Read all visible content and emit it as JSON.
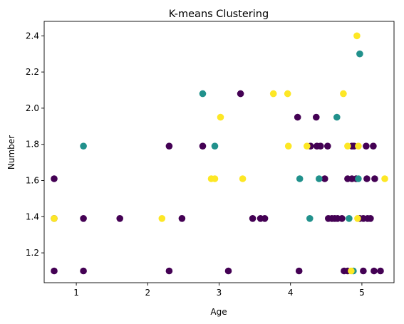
{
  "chart_data": {
    "type": "scatter",
    "title": "K-means Clustering",
    "xlabel": "Age",
    "ylabel": "Number",
    "xlim": [
      0.55,
      5.45
    ],
    "ylim": [
      1.035,
      2.48
    ],
    "xticks": [
      1,
      2,
      3,
      4,
      5
    ],
    "yticks": [
      1.2,
      1.4,
      1.6,
      1.8,
      2.0,
      2.2,
      2.4
    ],
    "xtick_labels": [
      "1",
      "2",
      "3",
      "4",
      "5"
    ],
    "ytick_labels": [
      "1.2",
      "1.4",
      "1.6",
      "1.8",
      "2.0",
      "2.2",
      "2.4"
    ],
    "grid": false,
    "cluster_colors": [
      "#440154",
      "#21918c",
      "#fde725"
    ],
    "series": [
      {
        "color": "#440154",
        "points": [
          [
            0.69,
            1.1
          ],
          [
            1.1,
            1.1
          ],
          [
            2.3,
            1.1
          ],
          [
            3.13,
            1.1
          ],
          [
            4.12,
            1.1
          ],
          [
            4.75,
            1.1
          ],
          [
            4.8,
            1.1
          ],
          [
            5.02,
            1.1
          ],
          [
            5.17,
            1.1
          ],
          [
            5.26,
            1.1
          ],
          [
            0.69,
            1.39
          ],
          [
            1.1,
            1.39
          ],
          [
            1.61,
            1.39
          ],
          [
            2.48,
            1.39
          ],
          [
            3.47,
            1.39
          ],
          [
            3.58,
            1.39
          ],
          [
            3.64,
            1.39
          ],
          [
            4.53,
            1.39
          ],
          [
            4.58,
            1.39
          ],
          [
            4.62,
            1.39
          ],
          [
            4.66,
            1.39
          ],
          [
            4.72,
            1.39
          ],
          [
            4.97,
            1.39
          ],
          [
            5.02,
            1.39
          ],
          [
            5.08,
            1.39
          ],
          [
            5.12,
            1.39
          ],
          [
            0.69,
            1.61
          ],
          [
            4.48,
            1.61
          ],
          [
            4.8,
            1.61
          ],
          [
            4.86,
            1.61
          ],
          [
            4.92,
            1.61
          ],
          [
            5.07,
            1.61
          ],
          [
            5.18,
            1.61
          ],
          [
            2.3,
            1.79
          ],
          [
            2.77,
            1.79
          ],
          [
            4.28,
            1.79
          ],
          [
            4.37,
            1.79
          ],
          [
            4.42,
            1.79
          ],
          [
            4.52,
            1.79
          ],
          [
            4.86,
            1.79
          ],
          [
            4.89,
            1.79
          ],
          [
            5.06,
            1.79
          ],
          [
            5.16,
            1.79
          ],
          [
            4.1,
            1.95
          ],
          [
            4.36,
            1.95
          ],
          [
            3.3,
            2.08
          ]
        ]
      },
      {
        "color": "#21918c",
        "points": [
          [
            1.1,
            1.79
          ],
          [
            2.77,
            2.08
          ],
          [
            2.94,
            1.79
          ],
          [
            4.13,
            1.61
          ],
          [
            4.4,
            1.61
          ],
          [
            4.27,
            1.39
          ],
          [
            4.82,
            1.39
          ],
          [
            4.65,
            1.95
          ],
          [
            4.97,
            2.3
          ],
          [
            4.88,
            1.1
          ],
          [
            4.95,
            1.61
          ]
        ]
      },
      {
        "color": "#fde725",
        "points": [
          [
            0.69,
            1.39
          ],
          [
            2.2,
            1.39
          ],
          [
            2.89,
            1.61
          ],
          [
            2.94,
            1.61
          ],
          [
            3.02,
            1.95
          ],
          [
            3.33,
            1.61
          ],
          [
            3.76,
            2.08
          ],
          [
            3.96,
            2.08
          ],
          [
            3.97,
            1.79
          ],
          [
            4.23,
            1.79
          ],
          [
            4.74,
            2.08
          ],
          [
            4.8,
            1.79
          ],
          [
            4.95,
            1.79
          ],
          [
            4.93,
            2.4
          ],
          [
            4.94,
            1.39
          ],
          [
            5.32,
            1.61
          ],
          [
            4.85,
            1.1
          ]
        ]
      }
    ]
  }
}
